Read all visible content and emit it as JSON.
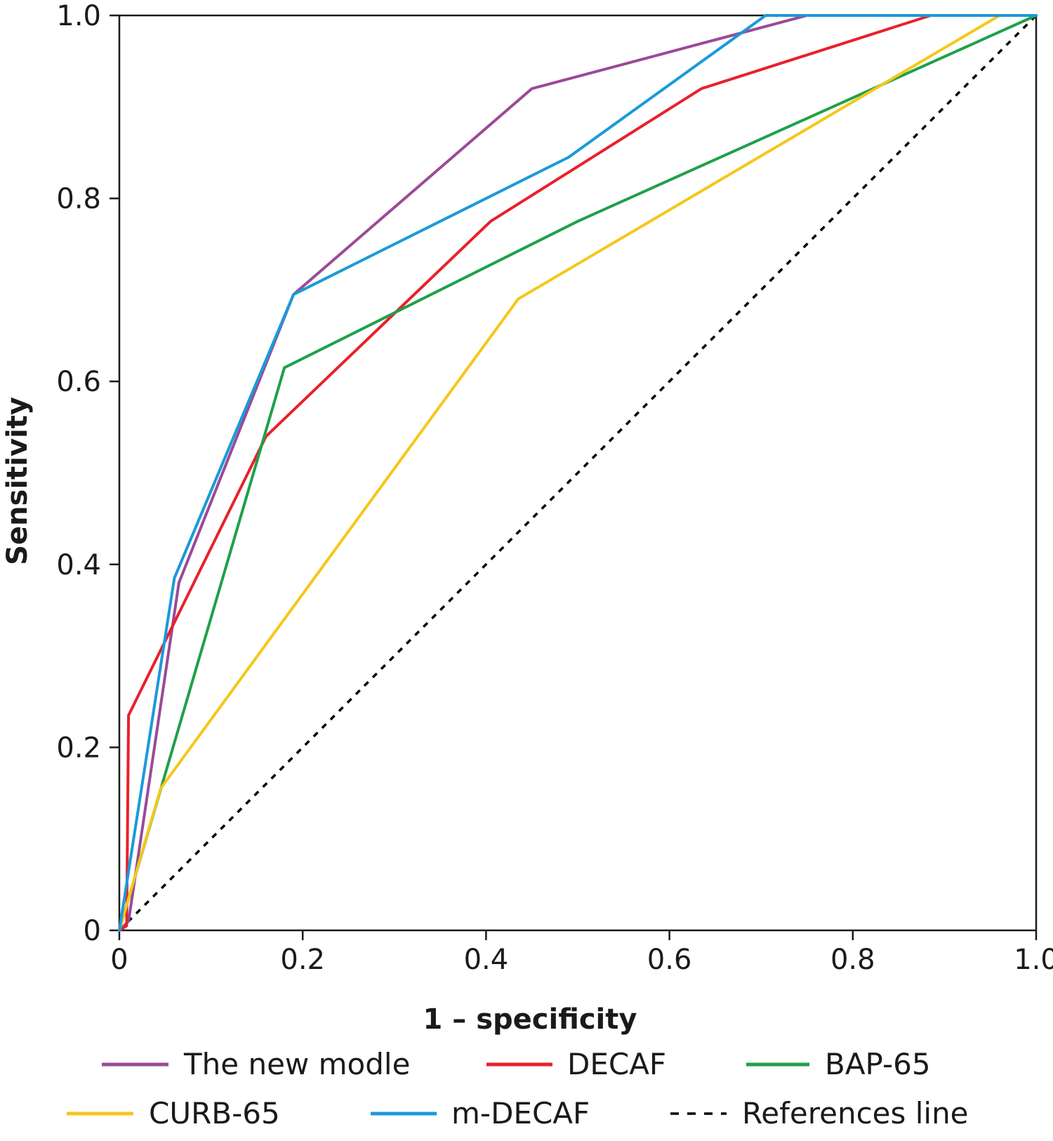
{
  "chart_data": {
    "type": "line",
    "title": "",
    "xlabel": "1 – specificity",
    "ylabel": "Sensitivity",
    "xlim": [
      0,
      1
    ],
    "ylim": [
      0,
      1
    ],
    "x_ticks": [
      "0",
      "0.2",
      "0.4",
      "0.6",
      "0.8",
      "1.0"
    ],
    "y_ticks": [
      "0",
      "0.2",
      "0.4",
      "0.6",
      "0.8",
      "1.0"
    ],
    "grid": false,
    "legend_position": "bottom",
    "series": [
      {
        "name": "The new modle",
        "color": "#9b4a96",
        "dashed": false,
        "points": [
          [
            0.0,
            0.0
          ],
          [
            0.01,
            0.01
          ],
          [
            0.065,
            0.38
          ],
          [
            0.19,
            0.695
          ],
          [
            0.45,
            0.92
          ],
          [
            0.75,
            1.0
          ],
          [
            1.0,
            1.0
          ]
        ]
      },
      {
        "name": "DECAF",
        "color": "#e8212b",
        "dashed": false,
        "points": [
          [
            0.0,
            0.0
          ],
          [
            0.008,
            0.005
          ],
          [
            0.01,
            0.235
          ],
          [
            0.16,
            0.54
          ],
          [
            0.405,
            0.775
          ],
          [
            0.635,
            0.92
          ],
          [
            0.885,
            1.0
          ],
          [
            1.0,
            1.0
          ]
        ]
      },
      {
        "name": "BAP-65",
        "color": "#1fa04a",
        "dashed": false,
        "points": [
          [
            0.0,
            0.0
          ],
          [
            0.18,
            0.615
          ],
          [
            0.5,
            0.775
          ],
          [
            1.0,
            1.0
          ]
        ]
      },
      {
        "name": "CURB-65",
        "color": "#f5c71a",
        "dashed": false,
        "points": [
          [
            0.0,
            0.0
          ],
          [
            0.045,
            0.155
          ],
          [
            0.435,
            0.69
          ],
          [
            0.96,
            1.0
          ],
          [
            1.0,
            1.0
          ]
        ]
      },
      {
        "name": "m-DECAF",
        "color": "#1a9ad9",
        "dashed": false,
        "points": [
          [
            0.0,
            0.0
          ],
          [
            0.06,
            0.385
          ],
          [
            0.19,
            0.695
          ],
          [
            0.49,
            0.845
          ],
          [
            0.705,
            1.0
          ],
          [
            1.0,
            1.0
          ]
        ]
      },
      {
        "name": "References line",
        "color": "#000000",
        "dashed": true,
        "points": [
          [
            0.0,
            0.0
          ],
          [
            1.0,
            1.0
          ]
        ]
      }
    ]
  }
}
